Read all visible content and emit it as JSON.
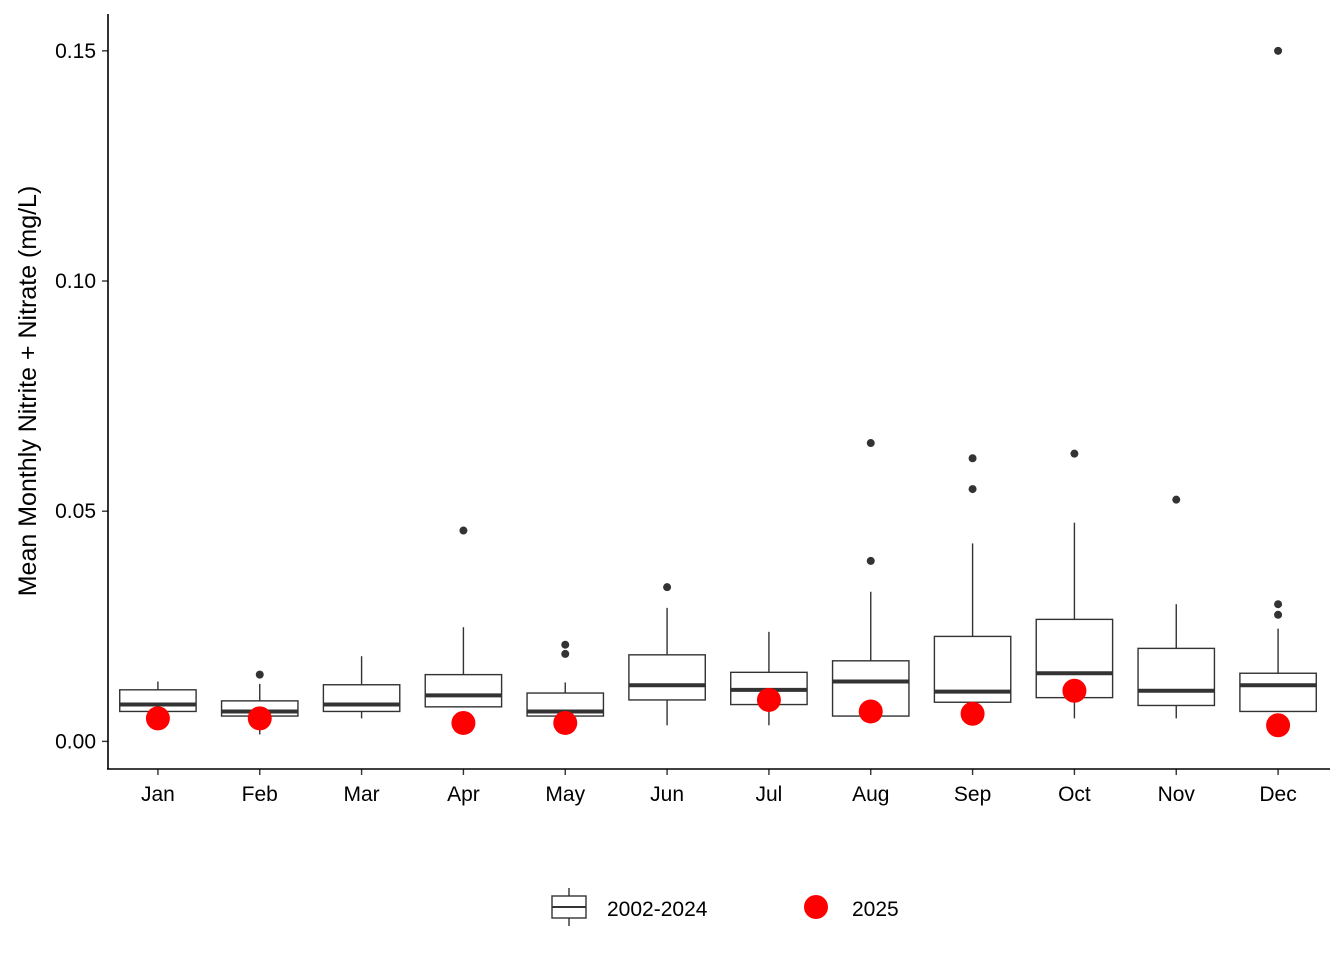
{
  "chart_data": {
    "type": "box",
    "title": "",
    "xlabel": "",
    "ylabel": "Mean Monthly Nitrite + Nitrate (mg/L)",
    "ylim": [
      -0.006,
      0.158
    ],
    "yticks": [
      0.0,
      0.05,
      0.1,
      0.15
    ],
    "ytick_labels": [
      "0.00",
      "0.05",
      "0.10",
      "0.15"
    ],
    "categories": [
      "Jan",
      "Feb",
      "Mar",
      "Apr",
      "May",
      "Jun",
      "Jul",
      "Aug",
      "Sep",
      "Oct",
      "Nov",
      "Dec"
    ],
    "grid": false,
    "legend_position": "bottom",
    "series": [
      {
        "name": "2002-2024",
        "kind": "boxplot",
        "boxes": [
          {
            "min": 0.0065,
            "q1": 0.0065,
            "median": 0.008,
            "q3": 0.0112,
            "max": 0.013,
            "outliers": []
          },
          {
            "min": 0.0015,
            "q1": 0.0055,
            "median": 0.0065,
            "q3": 0.0088,
            "max": 0.0125,
            "outliers": [
              0.0145
            ]
          },
          {
            "min": 0.005,
            "q1": 0.0065,
            "median": 0.008,
            "q3": 0.0123,
            "max": 0.0185,
            "outliers": []
          },
          {
            "min": 0.0075,
            "q1": 0.0075,
            "median": 0.01,
            "q3": 0.0145,
            "max": 0.0248,
            "outliers": [
              0.0458
            ]
          },
          {
            "min": 0.0055,
            "q1": 0.0055,
            "median": 0.0065,
            "q3": 0.0105,
            "max": 0.0128,
            "outliers": [
              0.019,
              0.021
            ]
          },
          {
            "min": 0.0035,
            "q1": 0.009,
            "median": 0.0122,
            "q3": 0.0188,
            "max": 0.029,
            "outliers": [
              0.0335
            ]
          },
          {
            "min": 0.0035,
            "q1": 0.008,
            "median": 0.0112,
            "q3": 0.015,
            "max": 0.0238,
            "outliers": []
          },
          {
            "min": 0.0055,
            "q1": 0.0055,
            "median": 0.013,
            "q3": 0.0175,
            "max": 0.0325,
            "outliers": [
              0.0392,
              0.0648
            ]
          },
          {
            "min": 0.0085,
            "q1": 0.0085,
            "median": 0.0108,
            "q3": 0.0228,
            "max": 0.043,
            "outliers": [
              0.0548,
              0.0615
            ]
          },
          {
            "min": 0.005,
            "q1": 0.0095,
            "median": 0.0148,
            "q3": 0.0265,
            "max": 0.0475,
            "outliers": [
              0.0625
            ]
          },
          {
            "min": 0.005,
            "q1": 0.0078,
            "median": 0.011,
            "q3": 0.0202,
            "max": 0.0298,
            "outliers": [
              0.0525
            ]
          },
          {
            "min": 0.0065,
            "q1": 0.0065,
            "median": 0.0122,
            "q3": 0.0148,
            "max": 0.0245,
            "outliers": [
              0.0275,
              0.0298,
              0.15
            ]
          }
        ]
      },
      {
        "name": "2025",
        "kind": "points",
        "color": "#ff0000",
        "values": [
          0.005,
          0.005,
          null,
          0.004,
          0.004,
          null,
          0.009,
          0.0065,
          0.006,
          0.011,
          null,
          0.0035
        ]
      }
    ]
  }
}
